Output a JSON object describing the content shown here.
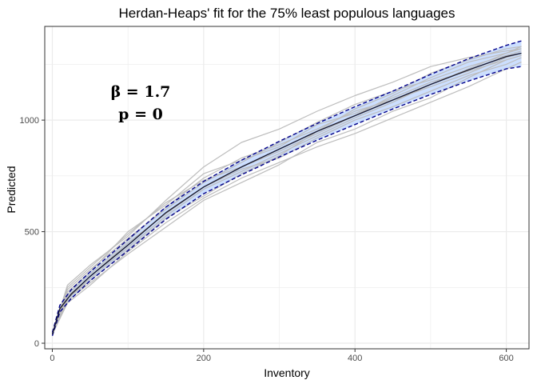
{
  "chart_data": {
    "type": "line",
    "title": "Herdan-Heaps' fit for the 75% least populous languages",
    "xlabel": "Inventory",
    "ylabel": "Predicted",
    "xlim": [
      -10,
      630
    ],
    "ylim": [
      -25,
      1420
    ],
    "x_ticks": [
      0,
      200,
      400,
      600
    ],
    "y_ticks": [
      0,
      500,
      1000
    ],
    "x_tick_labels": [
      "0",
      "200",
      "400",
      "600"
    ],
    "y_tick_labels": [
      "0",
      "500",
      "1000"
    ],
    "grid": true,
    "legend": "none",
    "annotations": [
      "β = 1.7",
      "p = 0"
    ],
    "colors": {
      "observed": "#bdbdbd",
      "fit": "#1a1a2e",
      "band": "#c6dbff",
      "bounds": "#00008b",
      "grid": "#ebebeb",
      "panel_border": "#333333"
    },
    "series": [
      {
        "role": "fit",
        "x": [
          0,
          10,
          25,
          50,
          100,
          150,
          200,
          250,
          300,
          350,
          400,
          450,
          500,
          550,
          600,
          620
        ],
        "values": [
          40,
          155,
          220,
          300,
          440,
          585,
          700,
          790,
          870,
          950,
          1020,
          1090,
          1160,
          1225,
          1285,
          1300
        ]
      },
      {
        "role": "upper-bound",
        "x": [
          0,
          10,
          25,
          50,
          100,
          150,
          200,
          250,
          300,
          350,
          400,
          450,
          500,
          550,
          600,
          620
        ],
        "values": [
          48,
          170,
          240,
          320,
          465,
          610,
          725,
          820,
          905,
          985,
          1060,
          1130,
          1205,
          1275,
          1335,
          1355
        ]
      },
      {
        "role": "lower-bound",
        "x": [
          0,
          10,
          25,
          50,
          100,
          150,
          200,
          250,
          300,
          350,
          400,
          450,
          500,
          550,
          600,
          620
        ],
        "values": [
          33,
          140,
          200,
          280,
          415,
          555,
          670,
          755,
          835,
          910,
          980,
          1050,
          1115,
          1175,
          1230,
          1240
        ]
      },
      {
        "role": "observed",
        "x": [
          0,
          20,
          50,
          100,
          150,
          200,
          250,
          300,
          350,
          400,
          450,
          500,
          550,
          600,
          620
        ],
        "values": [
          40,
          230,
          320,
          500,
          620,
          760,
          820,
          880,
          980,
          1030,
          1100,
          1170,
          1220,
          1270,
          1290
        ]
      },
      {
        "role": "observed",
        "x": [
          0,
          20,
          50,
          100,
          150,
          200,
          250,
          300,
          350,
          400,
          450,
          500,
          550,
          600,
          620
        ],
        "values": [
          40,
          200,
          280,
          420,
          560,
          660,
          760,
          840,
          950,
          1050,
          1120,
          1210,
          1270,
          1320,
          1330
        ]
      },
      {
        "role": "observed",
        "x": [
          0,
          20,
          50,
          100,
          150,
          200,
          250,
          300,
          350,
          400,
          450,
          500,
          550,
          600,
          620
        ],
        "values": [
          40,
          260,
          350,
          480,
          640,
          790,
          900,
          960,
          1040,
          1110,
          1170,
          1240,
          1280,
          1310,
          1320
        ]
      },
      {
        "role": "observed",
        "x": [
          0,
          20,
          50,
          100,
          150,
          200,
          250,
          300,
          350,
          400,
          450,
          500,
          550,
          600,
          620
        ],
        "values": [
          40,
          190,
          270,
          400,
          520,
          640,
          720,
          800,
          900,
          960,
          1040,
          1100,
          1190,
          1270,
          1290
        ]
      },
      {
        "role": "observed",
        "x": [
          0,
          20,
          50,
          100,
          150,
          200,
          250,
          300,
          350,
          400,
          450,
          500,
          550,
          600,
          620
        ],
        "values": [
          40,
          210,
          300,
          450,
          580,
          700,
          780,
          830,
          920,
          1000,
          1060,
          1130,
          1200,
          1250,
          1280
        ]
      },
      {
        "role": "observed",
        "x": [
          0,
          20,
          50,
          100,
          150,
          200,
          250,
          300,
          350,
          400,
          450,
          500,
          550,
          600,
          620
        ],
        "values": [
          40,
          240,
          330,
          470,
          600,
          720,
          810,
          900,
          990,
          1070,
          1130,
          1180,
          1240,
          1290,
          1310
        ]
      },
      {
        "role": "observed",
        "x": [
          0,
          20,
          50,
          100,
          150,
          200,
          250,
          300,
          350,
          400,
          450,
          500,
          550,
          600,
          620
        ],
        "values": [
          40,
          180,
          260,
          410,
          540,
          650,
          740,
          810,
          880,
          940,
          1010,
          1080,
          1150,
          1230,
          1260
        ]
      },
      {
        "role": "observed",
        "x": [
          0,
          20,
          50,
          100,
          150,
          200,
          250,
          300,
          350,
          400,
          450,
          500,
          550,
          600,
          620
        ],
        "values": [
          40,
          220,
          310,
          460,
          610,
          740,
          830,
          890,
          960,
          1040,
          1090,
          1150,
          1210,
          1280,
          1300
        ]
      },
      {
        "role": "observed",
        "x": [
          0,
          20,
          50,
          100,
          150,
          200,
          250,
          300,
          350,
          400,
          450,
          500,
          550,
          600,
          620
        ],
        "values": [
          40,
          200,
          290,
          430,
          570,
          690,
          770,
          850,
          930,
          1010,
          1080,
          1160,
          1230,
          1300,
          1330
        ]
      },
      {
        "role": "observed",
        "x": [
          0,
          20,
          50,
          100,
          150,
          200,
          250,
          300,
          350,
          400,
          450,
          500,
          550,
          600,
          620
        ],
        "values": [
          40,
          250,
          340,
          490,
          630,
          730,
          790,
          860,
          940,
          1020,
          1110,
          1190,
          1260,
          1300,
          1320
        ]
      }
    ]
  }
}
